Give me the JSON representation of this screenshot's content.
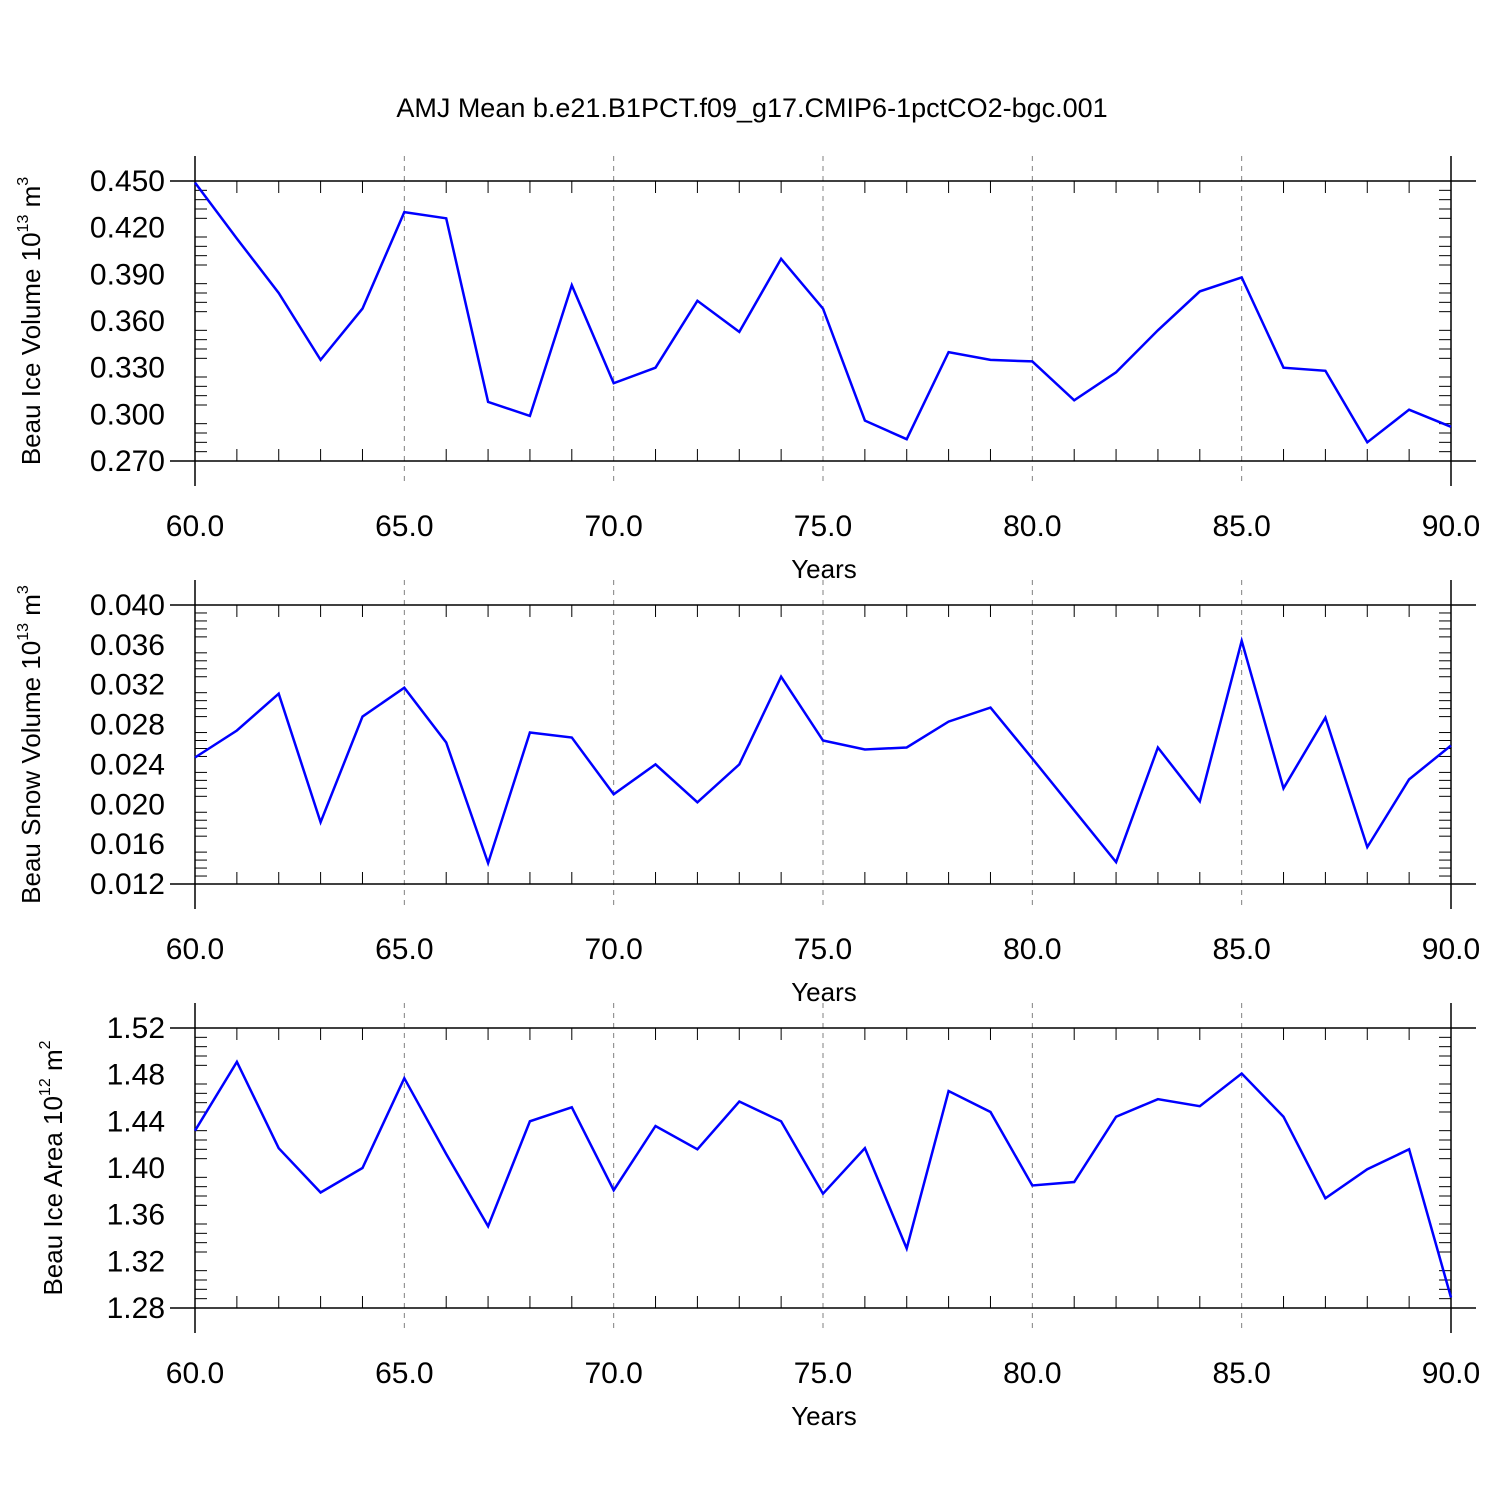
{
  "title": "AMJ Mean b.e21.B1PCT.f09_g17.CMIP6-1pctCO2-bgc.001",
  "colors": {
    "line": "#0000ff",
    "axis": "#000000",
    "grid": "#808080"
  },
  "chart_data": [
    {
      "type": "line",
      "ylabel": {
        "base": "Beau Ice Volume 10",
        "exp": "13",
        "unit": " m",
        "unit_exp": "3"
      },
      "xlabel": "Years",
      "xlim": [
        60,
        90
      ],
      "ylim": [
        0.27,
        0.45
      ],
      "yticks": [
        "0.270",
        "0.300",
        "0.330",
        "0.360",
        "0.390",
        "0.420",
        "0.450"
      ],
      "xticks": [
        "60.0",
        "65.0",
        "70.0",
        "75.0",
        "80.0",
        "85.0",
        "90.0"
      ],
      "grid": "dashed vertical at major x ticks",
      "series": [
        {
          "x": [
            60,
            61,
            62,
            63,
            64,
            65,
            66,
            67,
            68,
            69,
            70,
            71,
            72,
            73,
            74,
            75,
            76,
            77,
            78,
            79,
            80,
            81,
            82,
            83,
            84,
            85,
            86,
            87,
            88,
            89,
            90
          ],
          "values": [
            0.449,
            0.413,
            0.378,
            0.335,
            0.368,
            0.43,
            0.426,
            0.308,
            0.299,
            0.383,
            0.32,
            0.33,
            0.373,
            0.353,
            0.4,
            0.368,
            0.296,
            0.284,
            0.34,
            0.335,
            0.334,
            0.309,
            0.327,
            0.354,
            0.379,
            0.388,
            0.33,
            0.328,
            0.282,
            0.303,
            0.292
          ]
        }
      ]
    },
    {
      "type": "line",
      "ylabel": {
        "base": "Beau Snow Volume 10",
        "exp": "13",
        "unit": " m",
        "unit_exp": "3"
      },
      "xlabel": "Years",
      "xlim": [
        60,
        90
      ],
      "ylim": [
        0.012,
        0.04
      ],
      "yticks": [
        "0.012",
        "0.016",
        "0.020",
        "0.024",
        "0.028",
        "0.032",
        "0.036",
        "0.040"
      ],
      "xticks": [
        "60.0",
        "65.0",
        "70.0",
        "75.0",
        "80.0",
        "85.0",
        "90.0"
      ],
      "grid": "dashed vertical at major x ticks",
      "series": [
        {
          "x": [
            60,
            61,
            62,
            63,
            64,
            65,
            66,
            67,
            68,
            69,
            70,
            71,
            72,
            73,
            74,
            75,
            76,
            77,
            78,
            79,
            80,
            81,
            82,
            83,
            84,
            85,
            86,
            87,
            88,
            89,
            90
          ],
          "values": [
            0.0247,
            0.0274,
            0.0311,
            0.0182,
            0.0288,
            0.0317,
            0.0262,
            0.0141,
            0.0272,
            0.0267,
            0.021,
            0.024,
            0.0202,
            0.024,
            0.0328,
            0.0264,
            0.0255,
            0.0257,
            0.0283,
            0.0297,
            0.0246,
            0.0194,
            0.0142,
            0.0257,
            0.0203,
            0.0364,
            0.0216,
            0.0287,
            0.0157,
            0.0225,
            0.0259
          ]
        }
      ]
    },
    {
      "type": "line",
      "ylabel": {
        "base": "Beau Ice Area 10",
        "exp": "12",
        "unit": " m",
        "unit_exp": "2"
      },
      "xlabel": "Years",
      "xlim": [
        60,
        90
      ],
      "ylim": [
        1.28,
        1.52
      ],
      "yticks": [
        "1.28",
        "1.32",
        "1.36",
        "1.40",
        "1.44",
        "1.48",
        "1.52"
      ],
      "xticks": [
        "60.0",
        "65.0",
        "70.0",
        "75.0",
        "80.0",
        "85.0",
        "90.0"
      ],
      "grid": "dashed vertical at major x ticks",
      "series": [
        {
          "x": [
            60,
            61,
            62,
            63,
            64,
            65,
            66,
            67,
            68,
            69,
            70,
            71,
            72,
            73,
            74,
            75,
            76,
            77,
            78,
            79,
            80,
            81,
            82,
            83,
            84,
            85,
            86,
            87,
            88,
            89,
            90
          ],
          "values": [
            1.432,
            1.491,
            1.417,
            1.379,
            1.4,
            1.477,
            1.412,
            1.35,
            1.44,
            1.452,
            1.381,
            1.436,
            1.416,
            1.457,
            1.44,
            1.378,
            1.417,
            1.331,
            1.466,
            1.448,
            1.385,
            1.388,
            1.444,
            1.459,
            1.453,
            1.481,
            1.444,
            1.374,
            1.399,
            1.416,
            1.289
          ]
        }
      ]
    }
  ]
}
